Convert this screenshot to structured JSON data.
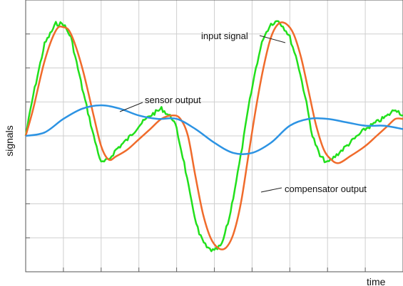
{
  "chart_data": {
    "type": "line",
    "title": "",
    "xlabel": "time",
    "ylabel": "signals",
    "grid": true,
    "legend": "none",
    "xlim": [
      0,
      10
    ],
    "ylim": [
      -4,
      4
    ],
    "series": [
      {
        "name": "input signal",
        "color": "#22e01c",
        "x": [
          0,
          0.2,
          0.5,
          0.8,
          1.0,
          1.2,
          1.5,
          1.8,
          2.0,
          2.2,
          2.4,
          2.5,
          2.7,
          3.0,
          3.3,
          3.6,
          3.9,
          4.0,
          4.2,
          4.4,
          4.6,
          4.8,
          5.0,
          5.2,
          5.4,
          5.5,
          5.7,
          5.9,
          6.1,
          6.3,
          6.5,
          6.7,
          6.9,
          7.0,
          7.2,
          7.4,
          7.6,
          7.8,
          8.0,
          8.2,
          8.4,
          8.6,
          8.8,
          9.0,
          9.3,
          9.6,
          9.8,
          10.0
        ],
        "y": [
          0.0,
          1.2,
          2.7,
          3.3,
          3.3,
          2.9,
          1.4,
          0.0,
          -0.8,
          -0.7,
          -0.4,
          -0.3,
          -0.1,
          0.3,
          0.6,
          0.8,
          0.5,
          0.2,
          -0.8,
          -2.0,
          -2.9,
          -3.3,
          -3.4,
          -3.2,
          -2.4,
          -1.8,
          -0.6,
          0.8,
          2.0,
          2.9,
          3.3,
          3.4,
          3.1,
          2.9,
          2.2,
          1.2,
          0.0,
          -0.6,
          -0.8,
          -0.6,
          -0.4,
          -0.2,
          0.0,
          0.2,
          0.4,
          0.6,
          0.8,
          0.6
        ]
      },
      {
        "name": "compensator output",
        "color": "#f06b2b",
        "x": [
          0,
          0.2,
          0.5,
          0.8,
          1.0,
          1.2,
          1.5,
          1.8,
          2.0,
          2.2,
          2.4,
          2.7,
          3.0,
          3.3,
          3.6,
          3.9,
          4.1,
          4.3,
          4.5,
          4.7,
          4.9,
          5.1,
          5.3,
          5.5,
          5.7,
          5.9,
          6.1,
          6.3,
          6.5,
          6.7,
          6.9,
          7.1,
          7.3,
          7.5,
          7.7,
          7.9,
          8.1,
          8.3,
          8.6,
          9.0,
          9.3,
          9.6,
          9.8,
          10.0
        ],
        "y": [
          0.0,
          0.8,
          2.2,
          3.1,
          3.2,
          3.0,
          2.0,
          0.6,
          -0.3,
          -0.7,
          -0.6,
          -0.4,
          -0.1,
          0.2,
          0.5,
          0.6,
          0.5,
          0.0,
          -1.2,
          -2.3,
          -3.0,
          -3.3,
          -3.3,
          -2.9,
          -2.0,
          -0.6,
          0.8,
          2.0,
          2.9,
          3.3,
          3.3,
          3.0,
          2.3,
          1.3,
          0.3,
          -0.4,
          -0.7,
          -0.8,
          -0.6,
          -0.3,
          0.0,
          0.3,
          0.5,
          0.5
        ]
      },
      {
        "name": "sensor output",
        "color": "#2c93e3",
        "x": [
          0,
          0.5,
          1.0,
          1.5,
          2.0,
          2.5,
          3.0,
          3.5,
          4.0,
          4.5,
          5.0,
          5.5,
          6.0,
          6.5,
          7.0,
          7.5,
          8.0,
          8.5,
          9.0,
          9.5,
          10.0
        ],
        "y": [
          0.0,
          0.1,
          0.5,
          0.8,
          0.9,
          0.8,
          0.6,
          0.5,
          0.5,
          0.2,
          -0.2,
          -0.5,
          -0.5,
          -0.2,
          0.3,
          0.5,
          0.5,
          0.4,
          0.3,
          0.3,
          0.2
        ]
      }
    ],
    "annotations": [
      {
        "text": "input signal",
        "target": "input signal"
      },
      {
        "text": "sensor output",
        "target": "sensor output"
      },
      {
        "text": "compensator output",
        "target": "compensator output"
      }
    ]
  }
}
